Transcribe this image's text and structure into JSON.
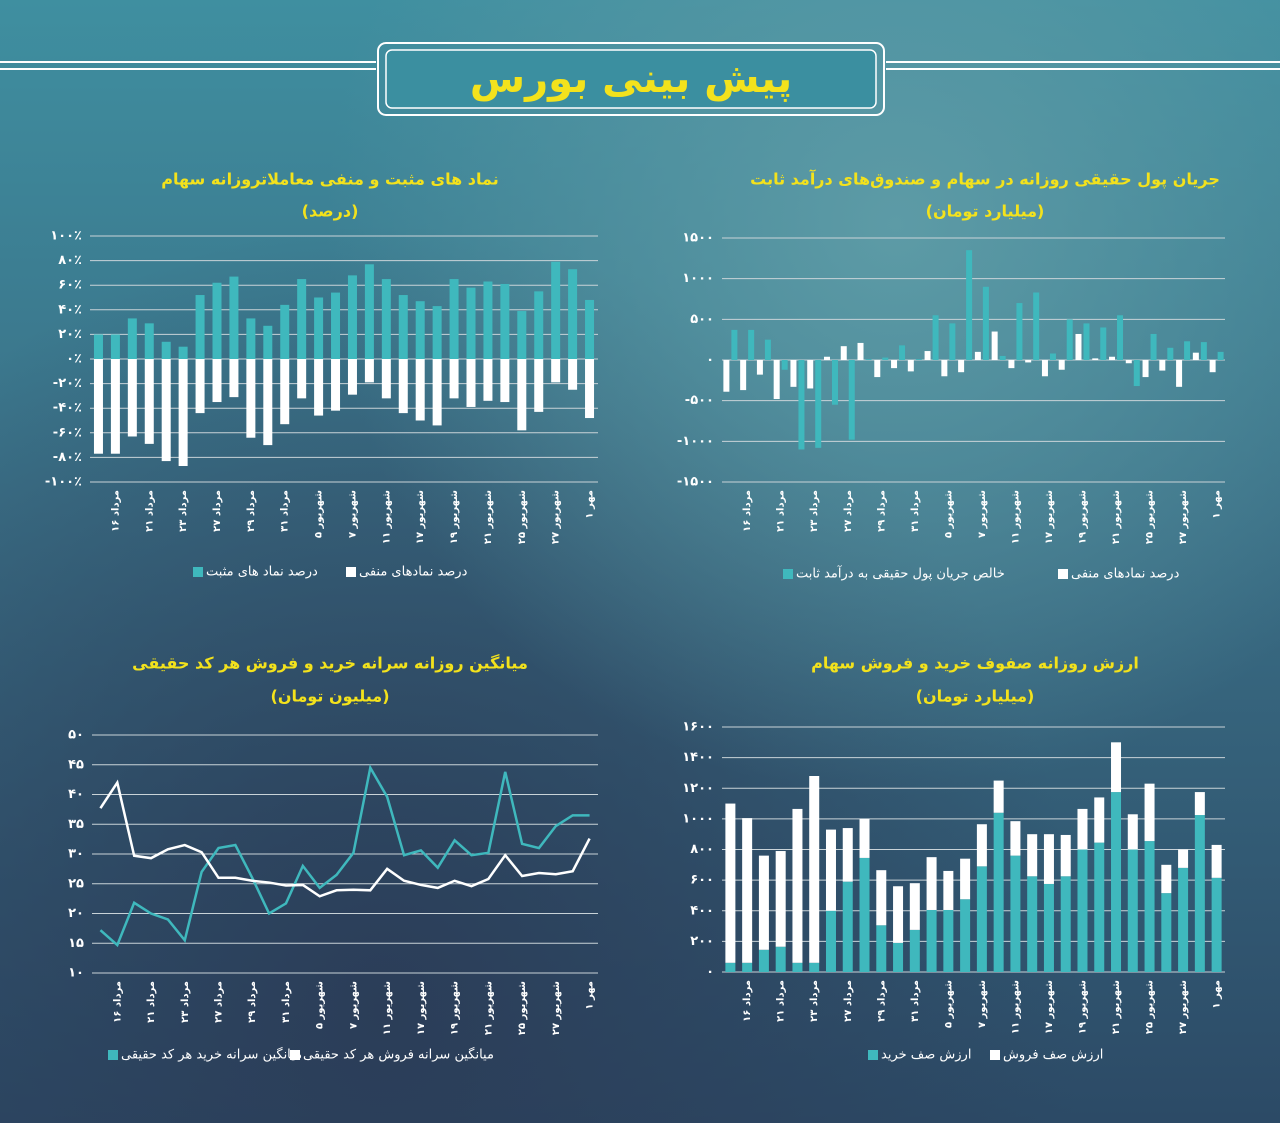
{
  "header": {
    "title": "پیش بینی بورس"
  },
  "chart_data": [
    {
      "type": "bar",
      "title": "نماد های مثبت و منفی معاملاتروزانه سهام",
      "subtitle": "(درصد)",
      "categories": [
        null,
        "۱۶ مرداد",
        null,
        "۲۱ مرداد",
        null,
        "۲۳ مرداد",
        null,
        "۲۷ مرداد",
        null,
        "۲۹ مرداد",
        null,
        "۳۱ مرداد",
        null,
        "۵ شهریور",
        null,
        "۷ شهریور",
        null,
        "۱۱ شهریور",
        null,
        "۱۷ شهریور",
        null,
        "۱۹ شهریور",
        null,
        "۲۱ شهریور",
        null,
        "۲۵ شهریور",
        null,
        "۲۷ شهریور",
        null,
        "۱ مهر"
      ],
      "series": [
        {
          "name": "درصد نماد های مثبت",
          "color": "#3fb8bd",
          "values": [
            20,
            20,
            33,
            29,
            14,
            10,
            52,
            62,
            67,
            33,
            27,
            44,
            65,
            50,
            54,
            68,
            77,
            65,
            52,
            47,
            43,
            65,
            58,
            63,
            61,
            39,
            55,
            79,
            73,
            48
          ]
        },
        {
          "name": "درصد نمادهای منفی",
          "color": "#ffffff",
          "values": [
            -77,
            -77,
            -63,
            -69,
            -83,
            -87,
            -44,
            -35,
            -31,
            -64,
            -70,
            -53,
            -32,
            -46,
            -42,
            -29,
            -19,
            -32,
            -44,
            -50,
            -54,
            -32,
            -39,
            -34,
            -35,
            -58,
            -43,
            -19,
            -25,
            -48
          ]
        }
      ],
      "ylim": [
        -100,
        100
      ],
      "yticks": [
        {
          "value": 100,
          "label": "۱۰۰٪"
        },
        {
          "value": 80,
          "label": "۸۰٪"
        },
        {
          "value": 60,
          "label": "۶۰٪"
        },
        {
          "value": 40,
          "label": "۴۰٪"
        },
        {
          "value": 20,
          "label": "۲۰٪"
        },
        {
          "value": 0,
          "label": "۰٪"
        },
        {
          "value": -20,
          "label": "-۲۰٪"
        },
        {
          "value": -40,
          "label": "-۴۰٪"
        },
        {
          "value": -60,
          "label": "-۶۰٪"
        },
        {
          "value": -80,
          "label": "-۸۰٪"
        },
        {
          "value": -100,
          "label": "-۱۰۰٪"
        }
      ],
      "grid": true
    },
    {
      "type": "bar",
      "title": "جریان پول حقیقی روزانه در سهام و صندوق‌های درآمد ثابت",
      "subtitle": "(میلیارد تومان)",
      "categories": [
        null,
        "۱۶ مرداد",
        null,
        "۲۱ مرداد",
        null,
        "۲۳ مرداد",
        null,
        "۲۷ مرداد",
        null,
        "۲۹ مرداد",
        null,
        "۳۱ مرداد",
        null,
        "۵ شهریور",
        null,
        "۷ شهریور",
        null,
        "۱۱ شهریور",
        null,
        "۱۷ شهریور",
        null,
        "۱۹ شهریور",
        null,
        "۲۱ شهریور",
        null,
        "۲۵ شهریور",
        null,
        "۲۷ شهریور",
        null,
        "۱ مهر"
      ],
      "series": [
        {
          "name": "خالص جریان پول حقیقی به درآمد ثابت",
          "color": "#3fb8bd",
          "values": [
            370,
            370,
            250,
            -120,
            -1100,
            -1080,
            -550,
            -980,
            10,
            30,
            180,
            10,
            550,
            450,
            1350,
            900,
            50,
            700,
            830,
            80,
            500,
            450,
            400,
            550,
            -320,
            320,
            150,
            230,
            220,
            100
          ]
        },
        {
          "name": "درصد نمادهای منفی",
          "color": "#ffffff",
          "values": [
            -390,
            -370,
            -180,
            -480,
            -330,
            -350,
            40,
            170,
            210,
            -210,
            -100,
            -140,
            110,
            -200,
            -150,
            100,
            350,
            -100,
            -30,
            -200,
            -120,
            320,
            20,
            40,
            -40,
            -210,
            -130,
            -330,
            90,
            -150
          ]
        }
      ],
      "ylim": [
        -1500,
        1500
      ],
      "yticks": [
        {
          "value": 1500,
          "label": "۱۵۰۰"
        },
        {
          "value": 1000,
          "label": "۱۰۰۰"
        },
        {
          "value": 500,
          "label": "۵۰۰"
        },
        {
          "value": 0,
          "label": "۰"
        },
        {
          "value": -500,
          "label": "-۵۰۰"
        },
        {
          "value": -1000,
          "label": "-۱۰۰۰"
        },
        {
          "value": -1500,
          "label": "-۱۵۰۰"
        }
      ],
      "grid": true
    },
    {
      "type": "line",
      "title": "میانگین روزانه سرانه خرید و فروش هر کد حقیقی",
      "subtitle": "(میلیون تومان)",
      "categories": [
        null,
        "۱۶ مرداد",
        null,
        "۲۱ مرداد",
        null,
        "۲۳ مرداد",
        null,
        "۲۷ مرداد",
        null,
        "۲۹ مرداد",
        null,
        "۳۱ مرداد",
        null,
        "۵ شهریور",
        null,
        "۷ شهریور",
        null,
        "۱۱ شهریور",
        null,
        "۱۷ شهریور",
        null,
        "۱۹ شهریور",
        null,
        "۲۱ شهریور",
        null,
        "۲۵ شهریور",
        null,
        "۲۷ شهریور",
        null,
        "۱ مهر"
      ],
      "series": [
        {
          "name": "میانگین سرانه خرید هر کد حقیقی",
          "color": "#3fb8bd",
          "values": [
            17.2,
            14.7,
            21.8,
            20,
            19,
            15.5,
            27,
            31,
            31.5,
            26,
            20,
            21.7,
            28,
            24.3,
            26.5,
            30.2,
            44.5,
            39.6,
            29.8,
            30.6,
            27.7,
            32.3,
            29.8,
            30.2,
            43.8,
            31.7,
            31,
            34.7,
            36.5,
            36.5
          ]
        },
        {
          "name": "میانگین سرانه فروش هر کد حقیقی",
          "color": "#ffffff",
          "values": [
            37.7,
            42,
            29.7,
            29.3,
            30.8,
            31.5,
            30.3,
            26,
            26,
            25.5,
            25.2,
            24.7,
            24.8,
            22.9,
            23.9,
            24,
            23.9,
            27.5,
            25.5,
            24.8,
            24.3,
            25.5,
            24.6,
            25.8,
            29.8,
            26.3,
            26.8,
            26.6,
            27.1,
            32.6
          ]
        }
      ],
      "ylim": [
        10,
        50
      ],
      "yticks": [
        {
          "value": 50,
          "label": "۵۰"
        },
        {
          "value": 45,
          "label": "۴۵"
        },
        {
          "value": 40,
          "label": "۴۰"
        },
        {
          "value": 35,
          "label": "۳۵"
        },
        {
          "value": 30,
          "label": "۳۰"
        },
        {
          "value": 25,
          "label": "۲۵"
        },
        {
          "value": 20,
          "label": "۲۰"
        },
        {
          "value": 15,
          "label": "۱۵"
        },
        {
          "value": 10,
          "label": "۱۰"
        }
      ],
      "grid": true
    },
    {
      "type": "stacked_bar",
      "title": "ارزش روزانه صفوف خرید و فروش سهام",
      "subtitle": "(میلیارد تومان)",
      "categories": [
        null,
        "۱۶ مرداد",
        null,
        "۲۱ مرداد",
        null,
        "۲۳ مرداد",
        null,
        "۲۷ مرداد",
        null,
        "۲۹ مرداد",
        null,
        "۳۱ مرداد",
        null,
        "۵ شهریور",
        null,
        "۷ شهریور",
        null,
        "۱۱ شهریور",
        null,
        "۱۷ شهریور",
        null,
        "۱۹ شهریور",
        null,
        "۲۱ شهریور",
        null,
        "۲۵ شهریور",
        null,
        "۲۷ شهریور",
        null,
        "۱ مهر"
      ],
      "series": [
        {
          "name": "ارزش صف خرید",
          "color": "#3fb8bd",
          "values": [
            60,
            60,
            145,
            165,
            60,
            60,
            400,
            590,
            745,
            305,
            190,
            275,
            405,
            405,
            475,
            690,
            1040,
            760,
            625,
            575,
            625,
            800,
            845,
            1175,
            800,
            855,
            515,
            680,
            1025,
            615
          ]
        },
        {
          "name": "ارزش صف فروش",
          "color": "#ffffff",
          "values": [
            1040,
            945,
            615,
            625,
            1005,
            1220,
            530,
            350,
            255,
            360,
            370,
            305,
            345,
            255,
            265,
            275,
            210,
            225,
            275,
            325,
            270,
            265,
            295,
            325,
            230,
            375,
            185,
            120,
            150,
            215
          ]
        }
      ],
      "ylim": [
        0,
        1600
      ],
      "yticks": [
        {
          "value": 0,
          "label": "۰"
        },
        {
          "value": 200,
          "label": "۲۰۰"
        },
        {
          "value": 400,
          "label": "۴۰۰"
        },
        {
          "value": 600,
          "label": "۶۰۰"
        },
        {
          "value": 800,
          "label": "۸۰۰"
        },
        {
          "value": 1000,
          "label": "۱۰۰۰"
        },
        {
          "value": 1200,
          "label": "۱۲۰۰"
        },
        {
          "value": 1400,
          "label": "۱۴۰۰"
        },
        {
          "value": 1600,
          "label": "۱۶۰۰"
        }
      ],
      "grid": true
    }
  ]
}
